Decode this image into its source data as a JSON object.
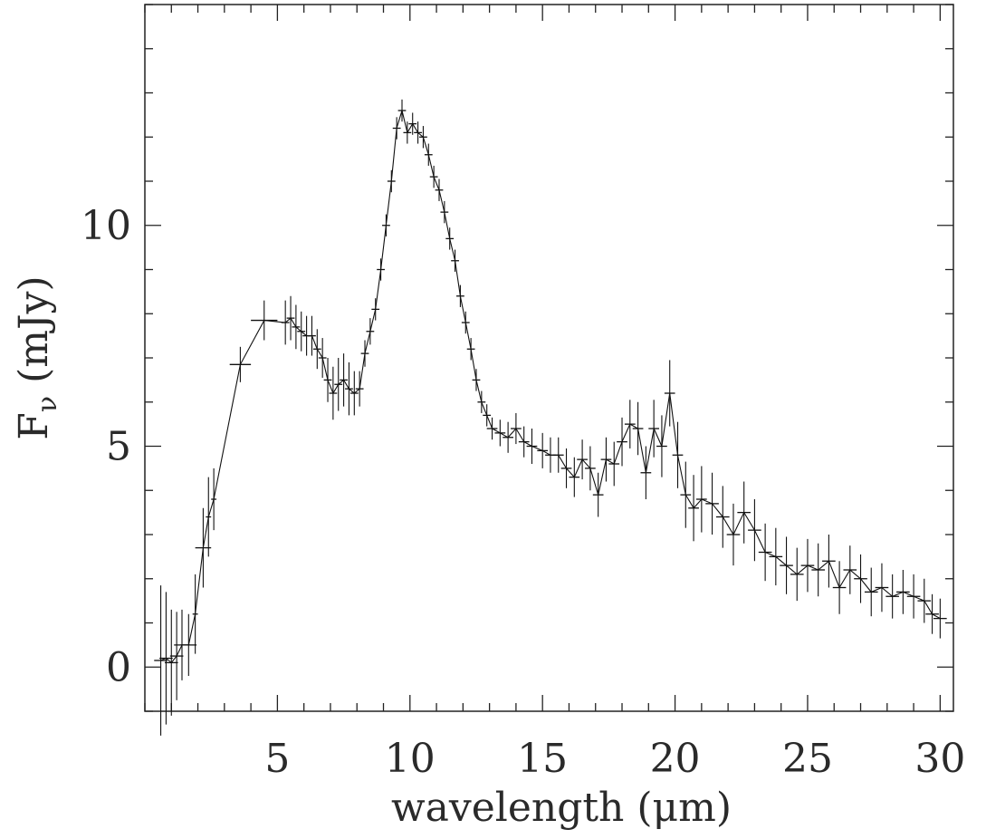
{
  "chart_data": {
    "type": "scatter",
    "title": "",
    "xlabel": "wavelength (μm)",
    "ylabel": "F_ν (mJy)",
    "ylabel_main": "F",
    "ylabel_sub": "ν",
    "ylabel_rest": " (mJy)",
    "xlim": [
      0,
      30.5
    ],
    "ylim": [
      -1,
      15
    ],
    "xticks": [
      5,
      10,
      15,
      20,
      25,
      30
    ],
    "xtick_labels": [
      "5",
      "10",
      "15",
      "20",
      "25",
      "30"
    ],
    "yticks": [
      0,
      5,
      10
    ],
    "ytick_labels": [
      "0",
      "5",
      "10"
    ],
    "x_minor_step": 1,
    "y_minor_step": 1,
    "grid": false,
    "legend": "none",
    "series": [
      {
        "style": "errorbar-crosses-with-line",
        "points": [
          [
            0.6,
            0.15,
            0.25,
            1.7
          ],
          [
            0.8,
            0.2,
            0.25,
            1.5
          ],
          [
            1.0,
            0.1,
            0.25,
            1.2
          ],
          [
            1.2,
            0.25,
            0.25,
            1.0
          ],
          [
            1.4,
            0.5,
            0.3,
            0.8
          ],
          [
            1.65,
            0.5,
            0.3,
            0.7
          ],
          [
            1.9,
            1.2,
            0.1,
            0.9
          ],
          [
            2.2,
            2.7,
            0.3,
            0.9
          ],
          [
            2.4,
            3.4,
            0.1,
            0.9
          ],
          [
            2.6,
            3.8,
            0.1,
            0.7
          ],
          [
            3.6,
            6.85,
            0.4,
            0.4
          ],
          [
            4.5,
            7.85,
            0.5,
            0.45
          ],
          [
            5.3,
            7.8,
            0.15,
            0.5
          ],
          [
            5.5,
            7.9,
            0.15,
            0.5
          ],
          [
            5.7,
            7.7,
            0.15,
            0.5
          ],
          [
            5.9,
            7.6,
            0.15,
            0.45
          ],
          [
            6.1,
            7.5,
            0.15,
            0.45
          ],
          [
            6.3,
            7.5,
            0.15,
            0.45
          ],
          [
            6.5,
            7.2,
            0.15,
            0.45
          ],
          [
            6.7,
            7.0,
            0.15,
            0.45
          ],
          [
            6.9,
            6.5,
            0.15,
            0.5
          ],
          [
            7.1,
            6.2,
            0.15,
            0.6
          ],
          [
            7.3,
            6.4,
            0.15,
            0.6
          ],
          [
            7.5,
            6.5,
            0.15,
            0.6
          ],
          [
            7.7,
            6.3,
            0.15,
            0.6
          ],
          [
            7.9,
            6.2,
            0.15,
            0.5
          ],
          [
            8.1,
            6.3,
            0.15,
            0.4
          ],
          [
            8.3,
            7.1,
            0.15,
            0.3
          ],
          [
            8.5,
            7.6,
            0.15,
            0.3
          ],
          [
            8.7,
            8.1,
            0.15,
            0.25
          ],
          [
            8.9,
            9.0,
            0.15,
            0.25
          ],
          [
            9.1,
            10.0,
            0.15,
            0.25
          ],
          [
            9.3,
            11.0,
            0.15,
            0.25
          ],
          [
            9.5,
            12.2,
            0.15,
            0.25
          ],
          [
            9.7,
            12.6,
            0.15,
            0.25
          ],
          [
            9.9,
            12.1,
            0.15,
            0.25
          ],
          [
            10.1,
            12.3,
            0.15,
            0.25
          ],
          [
            10.3,
            12.1,
            0.15,
            0.25
          ],
          [
            10.5,
            12.0,
            0.15,
            0.25
          ],
          [
            10.7,
            11.6,
            0.15,
            0.25
          ],
          [
            10.9,
            11.1,
            0.15,
            0.25
          ],
          [
            11.1,
            10.8,
            0.15,
            0.25
          ],
          [
            11.3,
            10.3,
            0.15,
            0.25
          ],
          [
            11.5,
            9.7,
            0.15,
            0.25
          ],
          [
            11.7,
            9.2,
            0.15,
            0.25
          ],
          [
            11.9,
            8.4,
            0.15,
            0.25
          ],
          [
            12.1,
            7.8,
            0.15,
            0.25
          ],
          [
            12.3,
            7.2,
            0.15,
            0.25
          ],
          [
            12.5,
            6.5,
            0.15,
            0.25
          ],
          [
            12.7,
            6.0,
            0.15,
            0.25
          ],
          [
            12.9,
            5.7,
            0.15,
            0.25
          ],
          [
            13.1,
            5.4,
            0.2,
            0.25
          ],
          [
            13.4,
            5.3,
            0.2,
            0.3
          ],
          [
            13.7,
            5.2,
            0.2,
            0.35
          ],
          [
            14.0,
            5.4,
            0.2,
            0.35
          ],
          [
            14.3,
            5.1,
            0.2,
            0.35
          ],
          [
            14.6,
            5.0,
            0.2,
            0.4
          ],
          [
            15.0,
            4.9,
            0.2,
            0.4
          ],
          [
            15.3,
            4.8,
            0.2,
            0.4
          ],
          [
            15.6,
            4.8,
            0.2,
            0.4
          ],
          [
            15.9,
            4.5,
            0.2,
            0.45
          ],
          [
            16.2,
            4.3,
            0.2,
            0.45
          ],
          [
            16.5,
            4.7,
            0.2,
            0.45
          ],
          [
            16.8,
            4.5,
            0.2,
            0.5
          ],
          [
            17.1,
            3.9,
            0.2,
            0.5
          ],
          [
            17.4,
            4.7,
            0.2,
            0.5
          ],
          [
            17.7,
            4.6,
            0.2,
            0.5
          ],
          [
            18.0,
            5.1,
            0.2,
            0.55
          ],
          [
            18.3,
            5.5,
            0.2,
            0.55
          ],
          [
            18.6,
            5.4,
            0.2,
            0.6
          ],
          [
            18.9,
            4.4,
            0.2,
            0.6
          ],
          [
            19.2,
            5.4,
            0.2,
            0.65
          ],
          [
            19.5,
            5.0,
            0.2,
            0.7
          ],
          [
            19.8,
            6.2,
            0.2,
            0.75
          ],
          [
            20.1,
            4.8,
            0.2,
            0.75
          ],
          [
            20.4,
            3.9,
            0.2,
            0.75
          ],
          [
            20.7,
            3.6,
            0.2,
            0.75
          ],
          [
            21.0,
            3.8,
            0.2,
            0.75
          ],
          [
            21.4,
            3.7,
            0.25,
            0.7
          ],
          [
            21.8,
            3.4,
            0.25,
            0.7
          ],
          [
            22.2,
            3.0,
            0.25,
            0.7
          ],
          [
            22.6,
            3.5,
            0.25,
            0.7
          ],
          [
            23.0,
            3.1,
            0.25,
            0.7
          ],
          [
            23.4,
            2.6,
            0.25,
            0.65
          ],
          [
            23.8,
            2.5,
            0.25,
            0.65
          ],
          [
            24.2,
            2.3,
            0.25,
            0.65
          ],
          [
            24.6,
            2.1,
            0.25,
            0.6
          ],
          [
            25.0,
            2.3,
            0.25,
            0.6
          ],
          [
            25.4,
            2.2,
            0.25,
            0.6
          ],
          [
            25.8,
            2.4,
            0.25,
            0.6
          ],
          [
            26.2,
            1.8,
            0.25,
            0.6
          ],
          [
            26.6,
            2.2,
            0.25,
            0.55
          ],
          [
            27.0,
            2.0,
            0.25,
            0.55
          ],
          [
            27.4,
            1.7,
            0.25,
            0.55
          ],
          [
            27.8,
            1.8,
            0.25,
            0.55
          ],
          [
            28.2,
            1.6,
            0.25,
            0.5
          ],
          [
            28.6,
            1.7,
            0.25,
            0.5
          ],
          [
            29.0,
            1.6,
            0.25,
            0.5
          ],
          [
            29.4,
            1.5,
            0.25,
            0.5
          ],
          [
            29.7,
            1.2,
            0.25,
            0.45
          ],
          [
            30.0,
            1.1,
            0.25,
            0.45
          ]
        ],
        "point_format": [
          "x",
          "y",
          "x_halfwidth",
          "y_err"
        ]
      }
    ]
  }
}
